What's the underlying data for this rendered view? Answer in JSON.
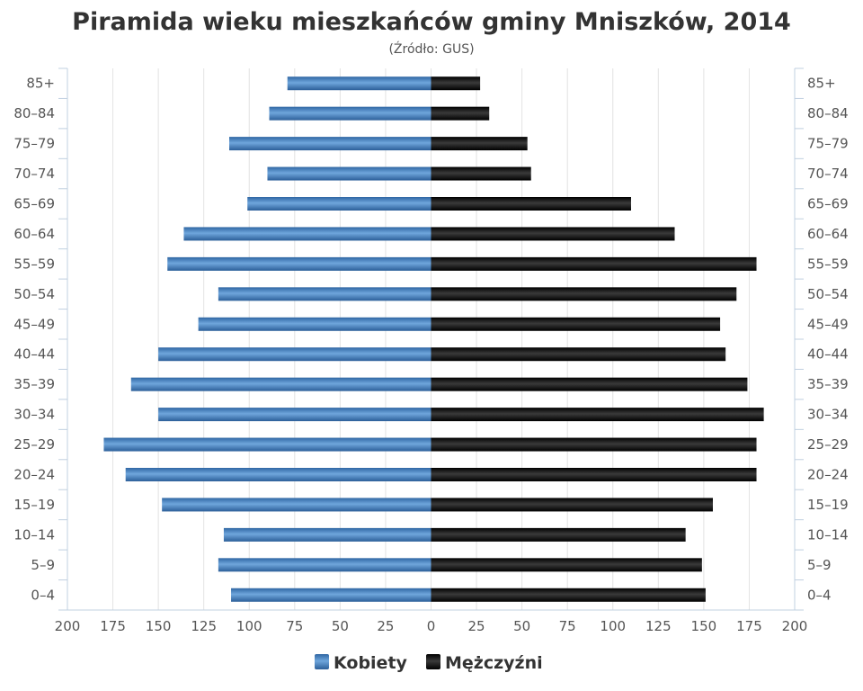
{
  "chart_data": {
    "type": "bar",
    "orientation": "horizontal-pyramid",
    "title": "Piramida wieku mieszkańców gminy Mniszków, 2014",
    "subtitle": "(Źródło: GUS)",
    "categories": [
      "0–4",
      "5–9",
      "10–14",
      "15–19",
      "20–24",
      "25–29",
      "30–34",
      "35–39",
      "40–44",
      "45–49",
      "50–54",
      "55–59",
      "60–64",
      "65–69",
      "70–74",
      "75–79",
      "80–84",
      "85+"
    ],
    "series": [
      {
        "name": "Kobiety",
        "color": "#3d7ab8",
        "values": [
          110,
          117,
          114,
          148,
          168,
          180,
          150,
          165,
          150,
          128,
          117,
          145,
          136,
          101,
          90,
          111,
          89,
          79
        ]
      },
      {
        "name": "Mężczyźni",
        "color": "#111111",
        "values": [
          151,
          149,
          140,
          155,
          179,
          179,
          183,
          174,
          162,
          159,
          168,
          179,
          134,
          110,
          55,
          53,
          32,
          27
        ]
      }
    ],
    "xlim": [
      -200,
      200
    ],
    "x_ticks": [
      200,
      175,
      150,
      125,
      100,
      75,
      50,
      25,
      0,
      25,
      50,
      75,
      100,
      125,
      150,
      175,
      200
    ],
    "grid": true,
    "legend_position": "bottom-center",
    "category_labels_both_sides": true
  }
}
